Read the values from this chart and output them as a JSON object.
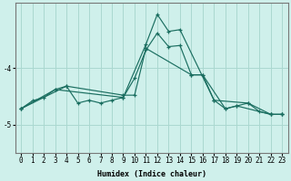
{
  "xlabel": "Humidex (Indice chaleur)",
  "bg_color": "#cff0eb",
  "grid_color": "#aad8d0",
  "line_color": "#1a6e60",
  "xlim_min": -0.5,
  "xlim_max": 23.5,
  "ylim_min": -5.5,
  "ylim_max": -2.85,
  "yticks": [
    -5,
    -4
  ],
  "xticks": [
    0,
    1,
    2,
    3,
    4,
    5,
    6,
    7,
    8,
    9,
    10,
    11,
    12,
    13,
    14,
    15,
    16,
    17,
    18,
    19,
    20,
    21,
    22,
    23
  ],
  "series1": [
    [
      0,
      -4.72
    ],
    [
      1,
      -4.58
    ],
    [
      2,
      -4.52
    ],
    [
      3,
      -4.38
    ],
    [
      4,
      -4.32
    ],
    [
      5,
      -4.62
    ],
    [
      6,
      -4.57
    ],
    [
      7,
      -4.62
    ],
    [
      8,
      -4.57
    ],
    [
      9,
      -4.52
    ],
    [
      10,
      -4.18
    ],
    [
      11,
      -3.68
    ],
    [
      12,
      -3.38
    ],
    [
      13,
      -3.62
    ],
    [
      14,
      -3.6
    ],
    [
      15,
      -4.12
    ],
    [
      16,
      -4.12
    ],
    [
      17,
      -4.57
    ],
    [
      18,
      -4.72
    ],
    [
      19,
      -4.67
    ],
    [
      20,
      -4.62
    ],
    [
      21,
      -4.77
    ],
    [
      22,
      -4.82
    ],
    [
      23,
      -4.82
    ]
  ],
  "series2": [
    [
      0,
      -4.72
    ],
    [
      3,
      -4.38
    ],
    [
      9,
      -4.52
    ],
    [
      11,
      -3.58
    ],
    [
      12,
      -3.05
    ],
    [
      13,
      -3.35
    ],
    [
      14,
      -3.32
    ],
    [
      17,
      -4.57
    ],
    [
      20,
      -4.62
    ],
    [
      22,
      -4.82
    ],
    [
      23,
      -4.82
    ]
  ],
  "series3": [
    [
      0,
      -4.72
    ],
    [
      4,
      -4.32
    ],
    [
      9,
      -4.48
    ],
    [
      10,
      -4.48
    ],
    [
      11,
      -3.65
    ],
    [
      15,
      -4.12
    ],
    [
      16,
      -4.12
    ],
    [
      18,
      -4.72
    ],
    [
      19,
      -4.67
    ],
    [
      22,
      -4.82
    ],
    [
      23,
      -4.82
    ]
  ]
}
